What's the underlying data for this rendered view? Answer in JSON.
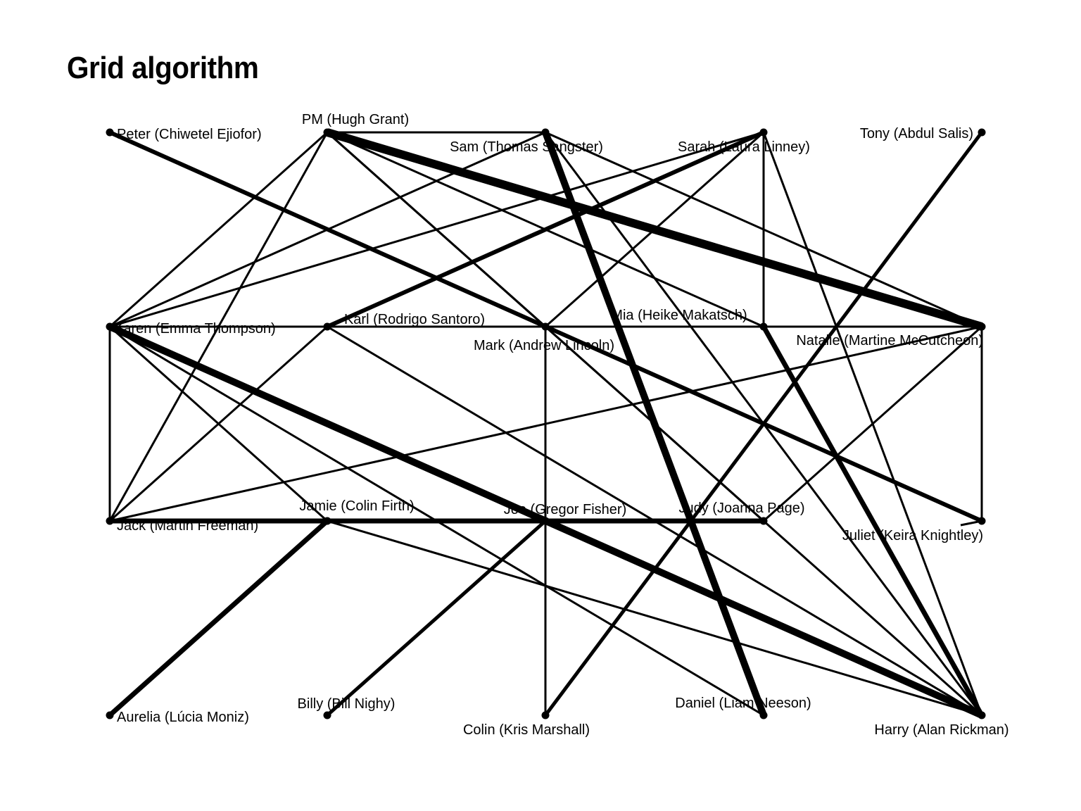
{
  "title": "Grid algorithm",
  "nodes": [
    {
      "id": "peter",
      "label": "Peter (Chiwetel Ejiofor)",
      "row": 0,
      "col": 0
    },
    {
      "id": "pm",
      "label": "PM (Hugh Grant)",
      "row": 0,
      "col": 1
    },
    {
      "id": "sam",
      "label": "Sam (Thomas Sangster)",
      "row": 0,
      "col": 2
    },
    {
      "id": "sarah",
      "label": "Sarah (Laura Linney)",
      "row": 0,
      "col": 3
    },
    {
      "id": "tony",
      "label": "Tony (Abdul Salis)",
      "row": 0,
      "col": 4
    },
    {
      "id": "karen",
      "label": "Karen (Emma Thompson)",
      "row": 1,
      "col": 0
    },
    {
      "id": "karl",
      "label": "Karl (Rodrigo Santoro)",
      "row": 1,
      "col": 1
    },
    {
      "id": "mark",
      "label": "Mark (Andrew Lincoln)",
      "row": 1,
      "col": 2
    },
    {
      "id": "mia",
      "label": "Mia (Heike Makatsch)",
      "row": 1,
      "col": 3
    },
    {
      "id": "natalie",
      "label": "Natalie (Martine McCutcheon)",
      "row": 1,
      "col": 4
    },
    {
      "id": "jack",
      "label": "Jack (Martin Freeman)",
      "row": 2,
      "col": 0
    },
    {
      "id": "jamie",
      "label": "Jamie (Colin Firth)",
      "row": 2,
      "col": 1
    },
    {
      "id": "joe",
      "label": "Joe (Gregor Fisher)",
      "row": 2,
      "col": 2
    },
    {
      "id": "judy",
      "label": "Judy (Joanna Page)",
      "row": 2,
      "col": 3
    },
    {
      "id": "juliet",
      "label": "Juliet (Keira Knightley)",
      "row": 2,
      "col": 4
    },
    {
      "id": "aurelia",
      "label": "Aurelia (Lúcia Moniz)",
      "row": 3,
      "col": 0
    },
    {
      "id": "billy",
      "label": "Billy (Bill Nighy)",
      "row": 3,
      "col": 1
    },
    {
      "id": "colin",
      "label": "Colin (Kris Marshall)",
      "row": 3,
      "col": 2
    },
    {
      "id": "daniel",
      "label": "Daniel (Liam Neeson)",
      "row": 3,
      "col": 3
    },
    {
      "id": "harry",
      "label": "Harry (Alan Rickman)",
      "row": 3,
      "col": 4
    }
  ],
  "edges": [
    {
      "source": "pm",
      "target": "natalie",
      "weight": 12
    },
    {
      "source": "sam",
      "target": "daniel",
      "weight": 10
    },
    {
      "source": "karen",
      "target": "harry",
      "weight": 10
    },
    {
      "source": "peter",
      "target": "juliet",
      "weight": 6
    },
    {
      "source": "karl",
      "target": "sarah",
      "weight": 6
    },
    {
      "source": "mia",
      "target": "harry",
      "weight": 7
    },
    {
      "source": "jack",
      "target": "judy",
      "weight": 7
    },
    {
      "source": "jamie",
      "target": "aurelia",
      "weight": 7
    },
    {
      "source": "tony",
      "target": "colin",
      "weight": 5
    },
    {
      "source": "joe",
      "target": "billy",
      "weight": 5
    },
    {
      "source": "pm",
      "target": "sam",
      "weight": 3
    },
    {
      "source": "pm",
      "target": "karen",
      "weight": 3
    },
    {
      "source": "pm",
      "target": "jack",
      "weight": 3
    },
    {
      "source": "pm",
      "target": "mark",
      "weight": 3
    },
    {
      "source": "pm",
      "target": "mia",
      "weight": 3
    },
    {
      "source": "pm",
      "target": "judy",
      "weight": 3
    },
    {
      "source": "sam",
      "target": "karen",
      "weight": 3
    },
    {
      "source": "sam",
      "target": "natalie",
      "weight": 3
    },
    {
      "source": "sam",
      "target": "harry",
      "weight": 3
    },
    {
      "source": "sarah",
      "target": "mia",
      "weight": 3
    },
    {
      "source": "sarah",
      "target": "mark",
      "weight": 3
    },
    {
      "source": "sarah",
      "target": "harry",
      "weight": 3
    },
    {
      "source": "sarah",
      "target": "karen",
      "weight": 3
    },
    {
      "source": "karen",
      "target": "karl",
      "weight": 3
    },
    {
      "source": "karen",
      "target": "jamie",
      "weight": 3
    },
    {
      "source": "karen",
      "target": "daniel",
      "weight": 3
    },
    {
      "source": "karen",
      "target": "jack",
      "weight": 3
    },
    {
      "source": "karl",
      "target": "mark",
      "weight": 3
    },
    {
      "source": "karl",
      "target": "jack",
      "weight": 3
    },
    {
      "source": "karl",
      "target": "harry",
      "weight": 3
    },
    {
      "source": "mark",
      "target": "natalie",
      "weight": 3
    },
    {
      "source": "mark",
      "target": "colin",
      "weight": 3
    },
    {
      "source": "mark",
      "target": "judy",
      "weight": 3
    },
    {
      "source": "mia",
      "target": "natalie",
      "weight": 3
    },
    {
      "source": "jack",
      "target": "natalie",
      "weight": 3
    },
    {
      "source": "jamie",
      "target": "harry",
      "weight": 3
    },
    {
      "source": "judy",
      "target": "harry",
      "weight": 3
    },
    {
      "source": "judy",
      "target": "natalie",
      "weight": 3
    },
    {
      "source": "juliet",
      "target": "natalie",
      "weight": 3
    },
    {
      "source": "juliet",
      "target": "juliet",
      "weight": 3
    }
  ]
}
